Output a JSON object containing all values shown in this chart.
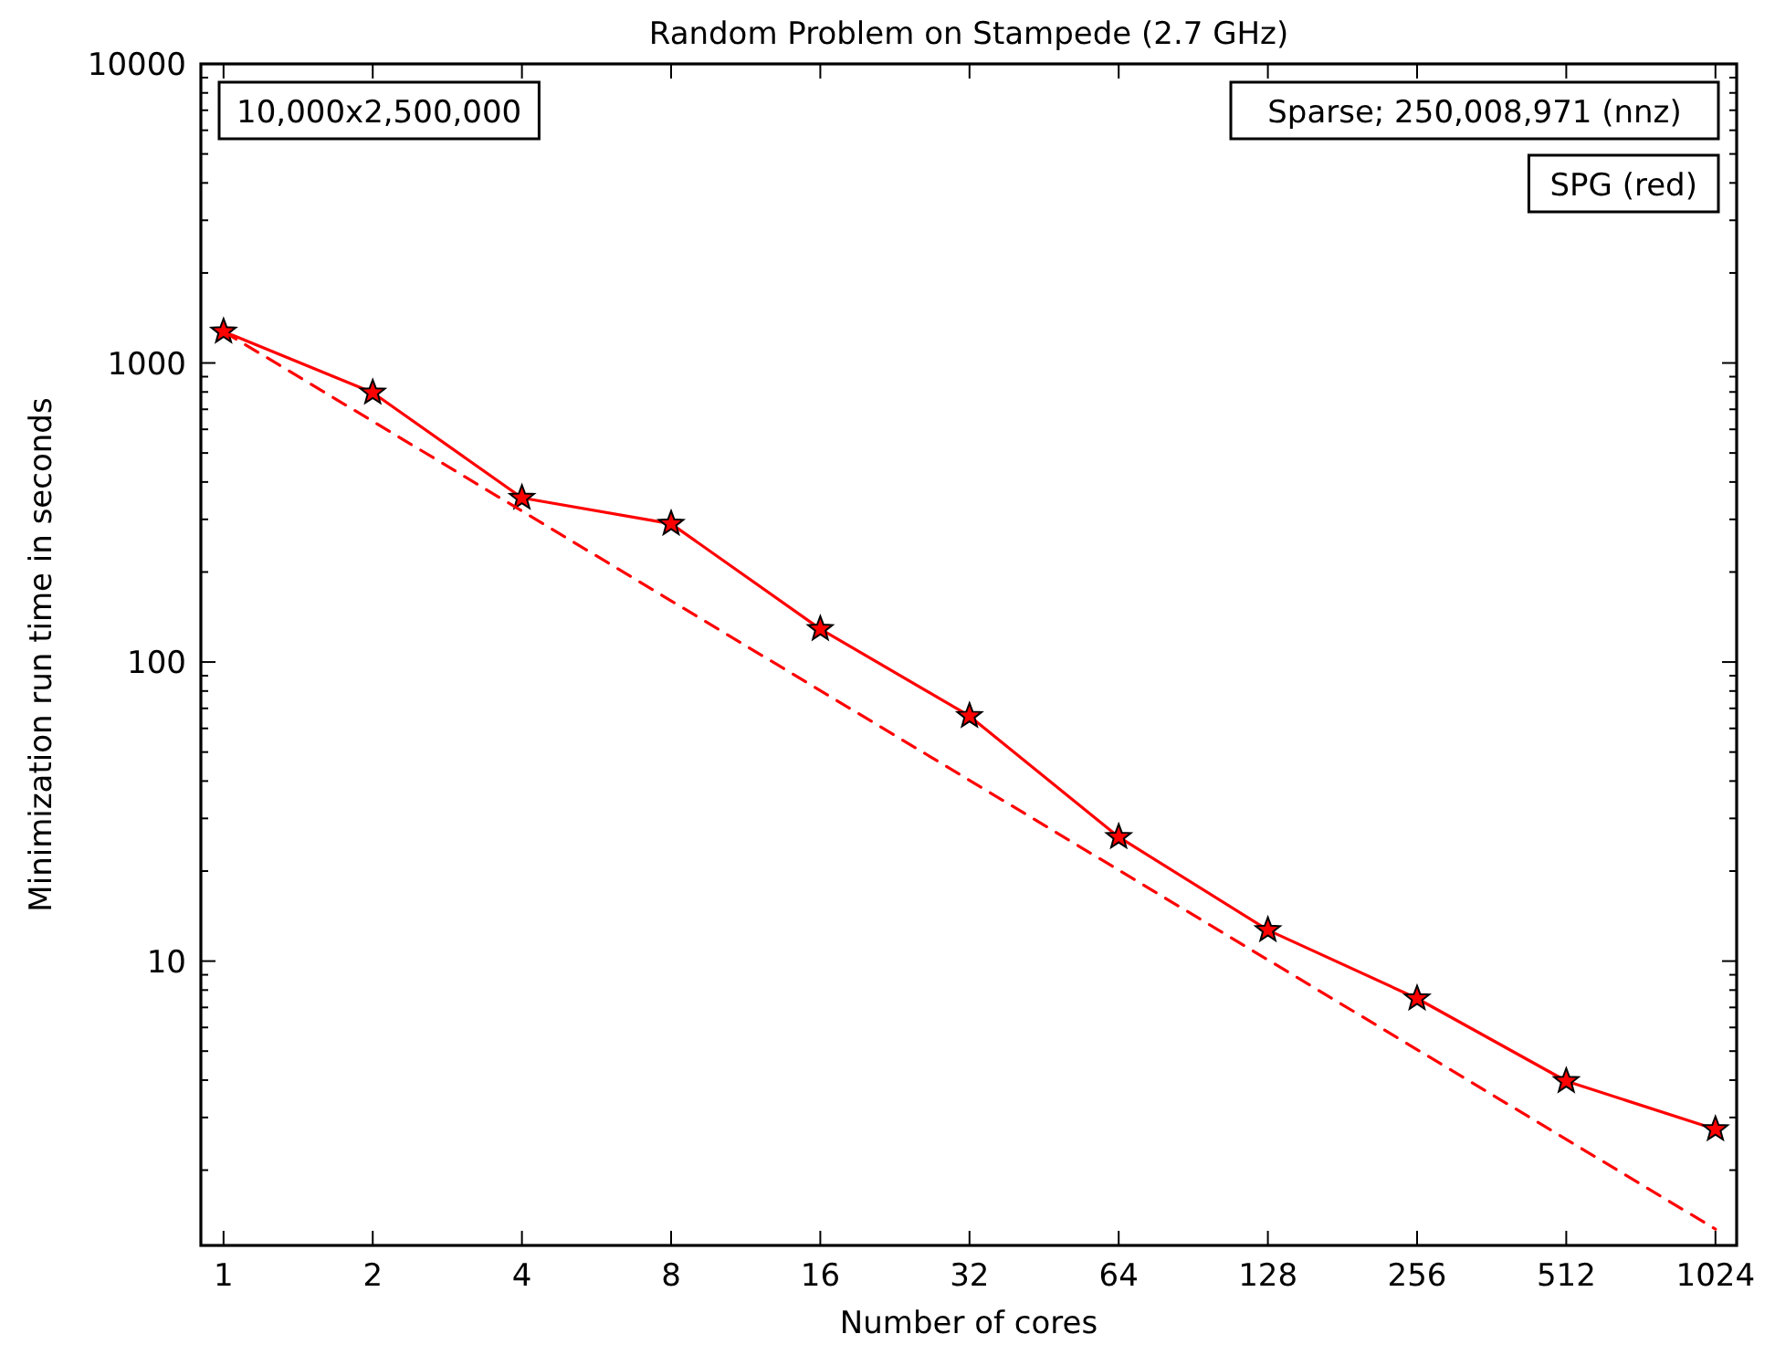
{
  "chart_data": {
    "type": "line",
    "title": "Random Problem on Stampede (2.7 GHz)",
    "xlabel": "Number of cores",
    "ylabel": "Minimization run time in seconds",
    "log": "xy",
    "grid": false,
    "xlim": [
      0.9,
      1130
    ],
    "ylim": [
      1.12,
      10000
    ],
    "xticks": [
      1,
      2,
      4,
      8,
      16,
      32,
      64,
      128,
      256,
      512,
      1024
    ],
    "yticks": [
      10,
      100,
      1000,
      10000
    ],
    "annotations": [
      "10,000x2,500,000",
      "Sparse; 250,008,971 (nnz)",
      "SPG (red)"
    ],
    "series": [
      {
        "color": "#ff0000",
        "marker": "star",
        "line_style": "solid",
        "x": [
          1,
          2,
          4,
          8,
          16,
          32,
          64,
          128,
          256,
          512,
          1024
        ],
        "values": [
          1274,
          796,
          354,
          290,
          129,
          66,
          26,
          12.7,
          7.5,
          3.97,
          2.74
        ]
      },
      {
        "color": "#ff0000",
        "marker": "none",
        "line_style": "dashed",
        "x": [
          1,
          1024
        ],
        "values": [
          1274,
          1.27
        ]
      }
    ]
  }
}
